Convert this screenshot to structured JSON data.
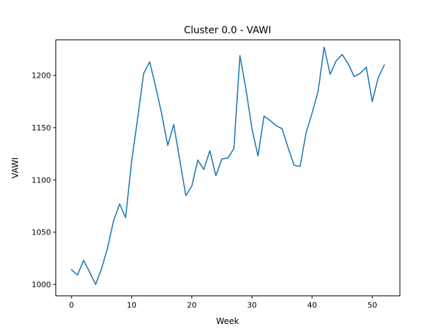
{
  "chart_data": {
    "type": "line",
    "title": "Cluster 0.0 - VAWI",
    "xlabel": "Week",
    "ylabel": "VAWI",
    "xlim": [
      -2.6,
      54.6
    ],
    "ylim": [
      989,
      1234
    ],
    "xticks": [
      0,
      10,
      20,
      30,
      40,
      50
    ],
    "yticks": [
      1000,
      1050,
      1100,
      1150,
      1200
    ],
    "grid": false,
    "line_color": "#1f77b4",
    "series": [
      {
        "x": [
          0,
          1,
          2,
          3,
          4,
          5,
          6,
          7,
          8,
          9,
          10,
          11,
          12,
          13,
          14,
          15,
          16,
          17,
          18,
          19,
          20,
          21,
          22,
          23,
          24,
          25,
          26,
          27,
          28,
          29,
          30,
          31,
          32,
          33,
          34,
          35,
          36,
          37,
          38,
          39,
          40,
          41,
          42,
          43,
          44,
          45,
          46,
          47,
          48,
          49,
          50,
          51,
          52
        ],
        "y": [
          1014,
          1009,
          1023,
          1012,
          1000,
          1015,
          1035,
          1061,
          1077,
          1064,
          1118,
          1159,
          1202,
          1213,
          1189,
          1163,
          1133,
          1153,
          1119,
          1085,
          1094,
          1119,
          1110,
          1128,
          1104,
          1120,
          1121,
          1130,
          1219,
          1187,
          1149,
          1123,
          1161,
          1157,
          1152,
          1149,
          1131,
          1114,
          1113,
          1145,
          1164,
          1185,
          1227,
          1201,
          1214,
          1220,
          1211,
          1199,
          1202,
          1208,
          1175,
          1198,
          1210
        ]
      }
    ]
  }
}
